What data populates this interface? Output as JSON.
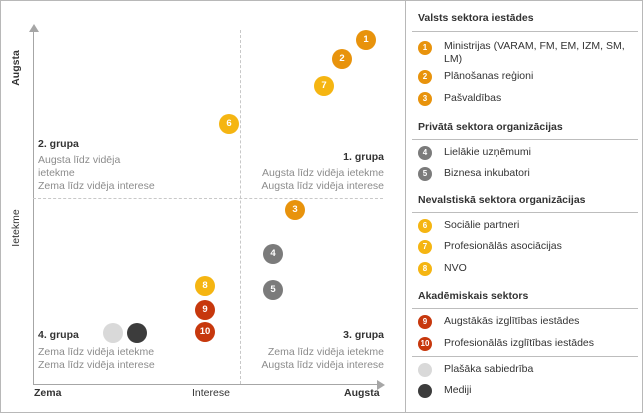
{
  "axes": {
    "y_top": "Augsta",
    "y_middle": "Ietekme",
    "x_left": "Zema",
    "x_middle": "Interese",
    "x_right": "Augsta"
  },
  "quadrants": {
    "q2": {
      "title": "2. grupa",
      "line1": "Augsta līdz vidēja",
      "line2": "ietekme",
      "line3": "Zema līdz vidēja interese"
    },
    "q1": {
      "title": "1. grupa",
      "line1": "Augsta līdz vidēja ietekme",
      "line2": "Augsta līdz vidēja interese"
    },
    "q4": {
      "title": "4. grupa",
      "line1": "Zema līdz vidēja ietekme",
      "line2": "Zema līdz vidēja interese"
    },
    "q3": {
      "title": "3. grupa",
      "line1": "Zema līdz vidēja ietekme",
      "line2": "Augsta līdz vidēja interese"
    }
  },
  "markers": {
    "m1": "1",
    "m2": "2",
    "m7": "7",
    "m6": "6",
    "m3": "3",
    "m4": "4",
    "m5": "5",
    "m8": "8",
    "m9": "9",
    "m10": "10"
  },
  "colors": {
    "state": "#e8930c",
    "private": "#7b7b7b",
    "ngo": "#f5b512",
    "academic": "#c7380d",
    "public": "#d9d9d9",
    "media": "#3c3c3c"
  },
  "legend": {
    "group1": {
      "heading": "Valsts sektora iestādes",
      "items": [
        {
          "num": "1",
          "text": "Ministrijas (VARAM, FM, EM, IZM, SM, LM)"
        },
        {
          "num": "2",
          "text": "Plānošanas reģioni"
        },
        {
          "num": "3",
          "text": "Pašvaldības"
        }
      ]
    },
    "group2": {
      "heading": "Privātā sektora organizācijas",
      "items": [
        {
          "num": "4",
          "text": "Lielākie uzņēmumi"
        },
        {
          "num": "5",
          "text": "Biznesa inkubatori"
        }
      ]
    },
    "group3": {
      "heading": "Nevalstiskā sektora organizācijas",
      "items": [
        {
          "num": "6",
          "text": "Sociālie partneri"
        },
        {
          "num": "7",
          "text": "Profesionālās asociācijas"
        },
        {
          "num": "8",
          "text": "NVO"
        }
      ]
    },
    "group4": {
      "heading": "Akadēmiskais sektors",
      "items": [
        {
          "num": "9",
          "text": "Augstākās izglītības iestādes"
        },
        {
          "num": "10",
          "text": "Profesionālās izglītības iestādes"
        }
      ]
    },
    "others": [
      {
        "text": "Plašāka sabiedrība"
      },
      {
        "text": "Mediji"
      }
    ]
  }
}
